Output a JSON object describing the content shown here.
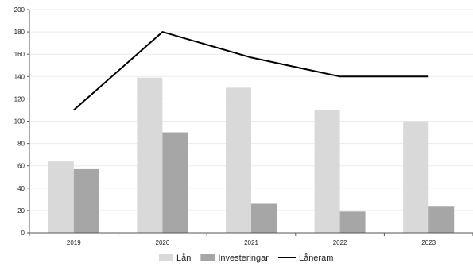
{
  "chart_data": {
    "type": "bar",
    "categories": [
      "2019",
      "2020",
      "2021",
      "2022",
      "2023"
    ],
    "series": [
      {
        "name": "Lån",
        "type": "bar",
        "color": "#d9d9d9",
        "values": [
          64,
          139,
          130,
          110,
          100
        ]
      },
      {
        "name": "Investeringar",
        "type": "bar",
        "color": "#a6a6a6",
        "values": [
          57,
          90,
          26,
          19,
          24
        ]
      },
      {
        "name": "Låneram",
        "type": "line",
        "color": "#000000",
        "values": [
          110,
          180,
          157,
          140,
          140
        ]
      }
    ],
    "yticks": [
      0,
      20,
      40,
      60,
      80,
      100,
      120,
      140,
      160,
      180,
      200
    ],
    "ylim": [
      0,
      200
    ],
    "grid": true,
    "legend_position": "bottom",
    "title": "",
    "xlabel": "",
    "ylabel": ""
  }
}
